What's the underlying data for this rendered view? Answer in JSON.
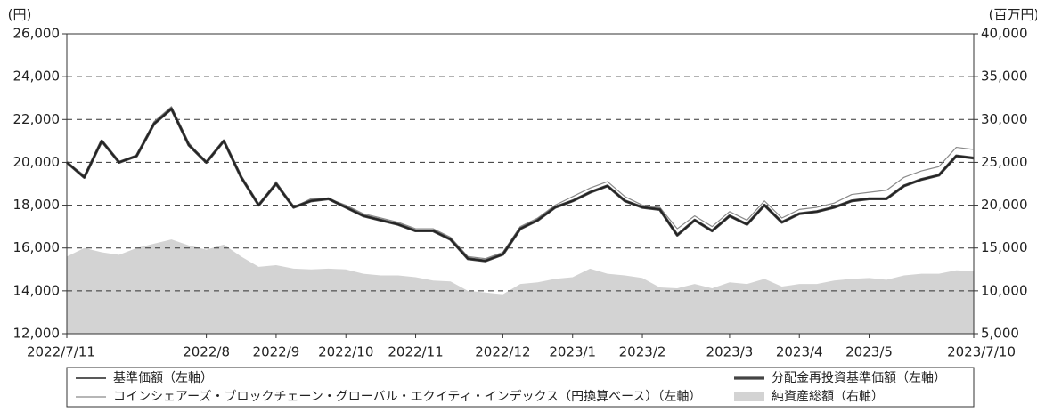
{
  "chart_data": {
    "type": "line",
    "y_unit_label": "(円)",
    "y2_unit_label": "(百万円)",
    "categories": [
      "2022/7/11",
      null,
      null,
      null,
      null,
      null,
      null,
      null,
      "2022/8",
      null,
      null,
      null,
      "2022/9",
      null,
      null,
      null,
      "2022/10",
      null,
      null,
      null,
      "2022/11",
      null,
      null,
      null,
      null,
      "2022/12",
      null,
      null,
      null,
      "2023/1",
      null,
      null,
      null,
      "2023/2",
      null,
      null,
      null,
      null,
      "2023/3",
      null,
      null,
      null,
      "2023/4",
      null,
      null,
      null,
      "2023/5",
      null,
      null,
      null,
      null,
      null,
      "2023/7/10"
    ],
    "series": [
      {
        "name": "基準価額（左軸）",
        "color": "#222222",
        "width": 1.6,
        "values": [
          20000,
          19300,
          21000,
          20000,
          20300,
          21800,
          22500,
          20800,
          20000,
          21000,
          19300,
          18000,
          19000,
          17900,
          18200,
          18300,
          17900,
          17500,
          17300,
          17100,
          16800,
          16800,
          16400,
          15500,
          15400,
          15700,
          16900,
          17300,
          17900,
          18200,
          18600,
          18900,
          18200,
          17900,
          17800,
          16600,
          17300,
          16800,
          17500,
          17100,
          18000,
          17200,
          17600,
          17700,
          17900,
          18200,
          18300,
          18300,
          18900,
          19200,
          19400,
          20300,
          20200
        ]
      },
      {
        "name": "分配金再投資基準価額（左軸）",
        "color": "#444444",
        "width": 3.2,
        "values": [
          20000,
          19300,
          21000,
          20000,
          20300,
          21800,
          22500,
          20800,
          20000,
          21000,
          19300,
          18000,
          19000,
          17900,
          18200,
          18300,
          17900,
          17500,
          17300,
          17100,
          16800,
          16800,
          16400,
          15500,
          15400,
          15700,
          16900,
          17300,
          17900,
          18200,
          18600,
          18900,
          18200,
          17900,
          17800,
          16600,
          17300,
          16800,
          17500,
          17100,
          18000,
          17200,
          17600,
          17700,
          17900,
          18200,
          18300,
          18300,
          18900,
          19200,
          19400,
          20300,
          20200
        ]
      },
      {
        "name": "コインシェアーズ・ブロックチェーン・グローバル・エクイティ・インデックス（円換算ベース）（左軸）",
        "color": "#8a8a8a",
        "width": 1.2,
        "values": [
          20000,
          19400,
          21000,
          20000,
          20300,
          21900,
          22600,
          20900,
          20000,
          21000,
          19300,
          18000,
          19100,
          17900,
          18300,
          18300,
          18000,
          17600,
          17400,
          17200,
          16900,
          16900,
          16500,
          15600,
          15500,
          15800,
          17000,
          17400,
          18000,
          18400,
          18800,
          19100,
          18400,
          18000,
          17900,
          16900,
          17500,
          17000,
          17700,
          17300,
          18200,
          17400,
          17800,
          17900,
          18100,
          18500,
          18600,
          18700,
          19300,
          19600,
          19800,
          20700,
          20600
        ]
      },
      {
        "name": "純資産総額（右軸）",
        "type": "area",
        "axis": "y2",
        "color": "#d3d3d3",
        "values": [
          14000,
          15000,
          14500,
          14200,
          15000,
          15500,
          16000,
          15300,
          14800,
          15400,
          14000,
          12800,
          13000,
          12600,
          12500,
          12600,
          12500,
          12000,
          11800,
          11800,
          11600,
          11200,
          11100,
          10000,
          9800,
          9600,
          10800,
          11000,
          11400,
          11600,
          12600,
          12000,
          11800,
          11500,
          10400,
          10300,
          10800,
          10300,
          11000,
          10800,
          11400,
          10500,
          10800,
          10800,
          11200,
          11400,
          11500,
          11300,
          11800,
          12000,
          12000,
          12400,
          12300
        ]
      }
    ],
    "ylim": [
      12000,
      26000
    ],
    "yticks": [
      {
        "value": 12000,
        "label": "12,000"
      },
      {
        "value": 14000,
        "label": "14,000"
      },
      {
        "value": 16000,
        "label": "16,000"
      },
      {
        "value": 18000,
        "label": "18,000"
      },
      {
        "value": 20000,
        "label": "20,000"
      },
      {
        "value": 22000,
        "label": "22,000"
      },
      {
        "value": 24000,
        "label": "24,000"
      },
      {
        "value": 26000,
        "label": "26,000"
      }
    ],
    "y2lim": [
      5000,
      40000
    ],
    "y2ticks": [
      {
        "value": 5000,
        "label": "5,000"
      },
      {
        "value": 10000,
        "label": "10,000"
      },
      {
        "value": 15000,
        "label": "15,000"
      },
      {
        "value": 20000,
        "label": "20,000"
      },
      {
        "value": 25000,
        "label": "25,000"
      },
      {
        "value": 30000,
        "label": "30,000"
      },
      {
        "value": 35000,
        "label": "35,000"
      },
      {
        "value": 40000,
        "label": "40,000"
      }
    ],
    "grid": true,
    "legend": "bottom"
  }
}
